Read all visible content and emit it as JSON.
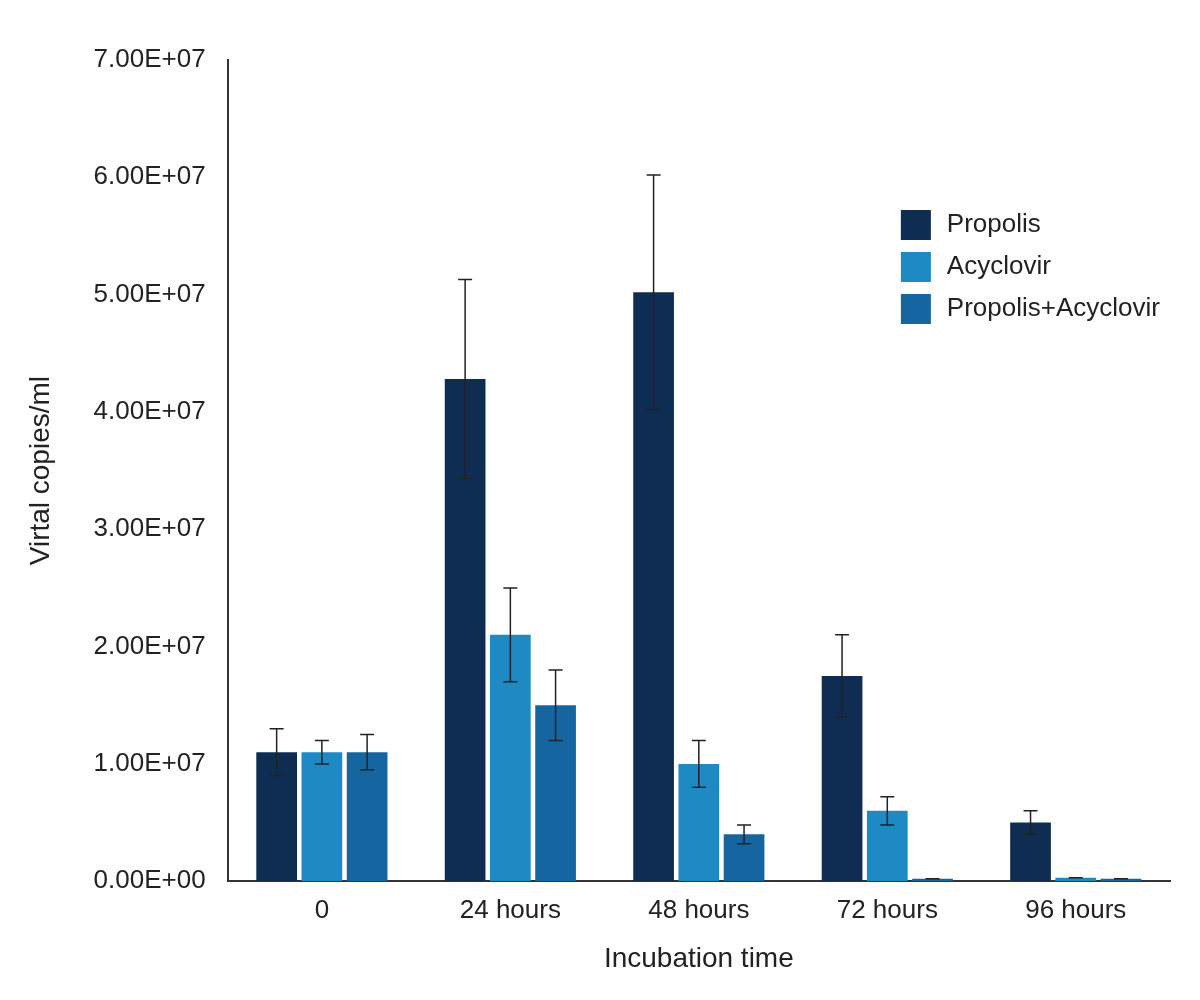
{
  "chart_data": {
    "type": "bar",
    "x_label": "Incubation time",
    "y_label": "Virtal copies/ml",
    "categories": [
      "0",
      "24 hours",
      "48 hours",
      "72 hours",
      "96 hours"
    ],
    "series": [
      {
        "name": "Propolis",
        "color": "#0f2d52",
        "values": [
          11000000,
          42800000,
          50200000,
          17500000,
          5000000
        ],
        "errors": [
          2000000,
          8500000,
          10000000,
          3500000,
          1000000
        ]
      },
      {
        "name": "Acyclovir",
        "color": "#1e8ac4",
        "values": [
          11000000,
          21000000,
          10000000,
          6000000,
          300000
        ],
        "errors": [
          1000000,
          4000000,
          2000000,
          1200000,
          0
        ]
      },
      {
        "name": "Propolis+Acyclovir",
        "color": "#1566a0",
        "values": [
          11000000,
          15000000,
          4000000,
          200000,
          200000
        ],
        "errors": [
          1500000,
          3000000,
          800000,
          0,
          0
        ]
      }
    ],
    "ylim": [
      0,
      70000000
    ],
    "yticks": [
      {
        "value": 0,
        "label": "0.00E+00"
      },
      {
        "value": 10000000,
        "label": "1.00E+07"
      },
      {
        "value": 20000000,
        "label": "2.00E+07"
      },
      {
        "value": 30000000,
        "label": "3.00E+07"
      },
      {
        "value": 40000000,
        "label": "4.00E+07"
      },
      {
        "value": 50000000,
        "label": "5.00E+07"
      },
      {
        "value": 60000000,
        "label": "6.00E+07"
      },
      {
        "value": 70000000,
        "label": "7.00E+07"
      }
    ],
    "grid": false,
    "legend": "upper right"
  }
}
